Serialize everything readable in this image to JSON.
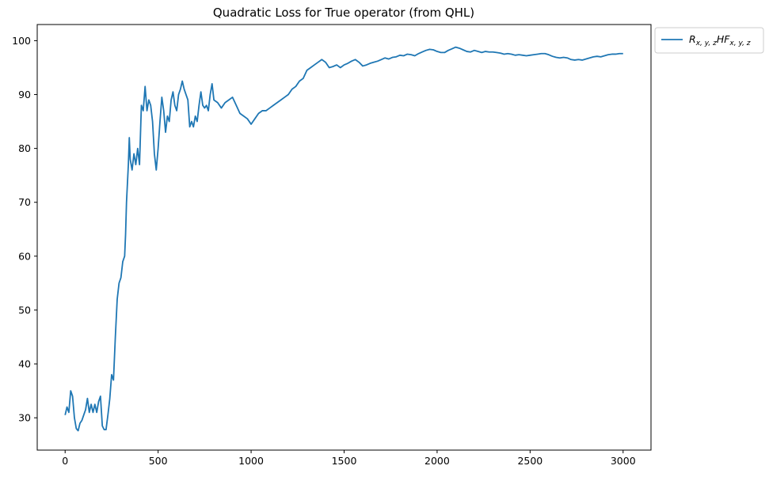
{
  "chart_data": {
    "type": "line",
    "title": "Quadratic Loss for True operator (from QHL)",
    "xlabel": "",
    "ylabel": "",
    "xlim": [
      -150,
      3150
    ],
    "ylim": [
      24,
      103
    ],
    "xticks": [
      0,
      500,
      1000,
      1500,
      2000,
      2500,
      3000
    ],
    "yticks": [
      30,
      40,
      50,
      60,
      70,
      80,
      90,
      100
    ],
    "legend_position": "outside-top-right",
    "grid": false,
    "series": [
      {
        "name": "R_{x,y,z}HF_{x,y,z}",
        "color": "#1f77b4",
        "points": [
          [
            0,
            30.5
          ],
          [
            10,
            32.0
          ],
          [
            20,
            31.0
          ],
          [
            30,
            35.0
          ],
          [
            40,
            34.0
          ],
          [
            50,
            30.0
          ],
          [
            60,
            28.0
          ],
          [
            70,
            27.6
          ],
          [
            80,
            29.0
          ],
          [
            90,
            29.5
          ],
          [
            100,
            30.5
          ],
          [
            110,
            31.5
          ],
          [
            120,
            33.6
          ],
          [
            130,
            31.0
          ],
          [
            140,
            32.5
          ],
          [
            150,
            31.0
          ],
          [
            160,
            32.5
          ],
          [
            170,
            31.0
          ],
          [
            180,
            33.0
          ],
          [
            190,
            34.0
          ],
          [
            200,
            28.5
          ],
          [
            210,
            27.8
          ],
          [
            220,
            27.8
          ],
          [
            230,
            30.5
          ],
          [
            240,
            33.5
          ],
          [
            250,
            38.0
          ],
          [
            260,
            37.0
          ],
          [
            270,
            45.0
          ],
          [
            280,
            52.0
          ],
          [
            290,
            55.0
          ],
          [
            300,
            56.0
          ],
          [
            310,
            59.0
          ],
          [
            320,
            60.0
          ],
          [
            325,
            64.0
          ],
          [
            330,
            70.0
          ],
          [
            340,
            77.0
          ],
          [
            345,
            82.0
          ],
          [
            350,
            78.0
          ],
          [
            360,
            76.0
          ],
          [
            370,
            79.0
          ],
          [
            380,
            77.0
          ],
          [
            390,
            80.0
          ],
          [
            400,
            77.0
          ],
          [
            410,
            88.0
          ],
          [
            420,
            87.0
          ],
          [
            430,
            91.5
          ],
          [
            440,
            87.0
          ],
          [
            450,
            89.0
          ],
          [
            460,
            88.0
          ],
          [
            470,
            85.0
          ],
          [
            480,
            79.0
          ],
          [
            490,
            76.0
          ],
          [
            500,
            80.0
          ],
          [
            510,
            85.0
          ],
          [
            520,
            89.5
          ],
          [
            530,
            87.0
          ],
          [
            540,
            83.0
          ],
          [
            550,
            86.0
          ],
          [
            560,
            85.0
          ],
          [
            570,
            89.0
          ],
          [
            580,
            90.5
          ],
          [
            590,
            88.0
          ],
          [
            600,
            87.0
          ],
          [
            610,
            90.0
          ],
          [
            620,
            91.0
          ],
          [
            630,
            92.5
          ],
          [
            640,
            91.0
          ],
          [
            650,
            90.0
          ],
          [
            660,
            89.0
          ],
          [
            670,
            84.0
          ],
          [
            680,
            85.0
          ],
          [
            690,
            84.0
          ],
          [
            700,
            86.0
          ],
          [
            710,
            85.0
          ],
          [
            720,
            88.0
          ],
          [
            730,
            90.5
          ],
          [
            740,
            88.0
          ],
          [
            750,
            87.5
          ],
          [
            760,
            88.0
          ],
          [
            770,
            87.0
          ],
          [
            780,
            90.0
          ],
          [
            790,
            92.0
          ],
          [
            800,
            89.0
          ],
          [
            820,
            88.5
          ],
          [
            840,
            87.5
          ],
          [
            860,
            88.5
          ],
          [
            880,
            89.0
          ],
          [
            900,
            89.5
          ],
          [
            920,
            88.0
          ],
          [
            940,
            86.5
          ],
          [
            960,
            86.0
          ],
          [
            980,
            85.5
          ],
          [
            1000,
            84.5
          ],
          [
            1020,
            85.5
          ],
          [
            1040,
            86.5
          ],
          [
            1060,
            87.0
          ],
          [
            1080,
            87.0
          ],
          [
            1100,
            87.5
          ],
          [
            1120,
            88.0
          ],
          [
            1140,
            88.5
          ],
          [
            1160,
            89.0
          ],
          [
            1180,
            89.5
          ],
          [
            1200,
            90.0
          ],
          [
            1220,
            91.0
          ],
          [
            1240,
            91.5
          ],
          [
            1260,
            92.5
          ],
          [
            1280,
            93.0
          ],
          [
            1300,
            94.5
          ],
          [
            1320,
            95.0
          ],
          [
            1340,
            95.5
          ],
          [
            1360,
            96.0
          ],
          [
            1380,
            96.5
          ],
          [
            1400,
            96.0
          ],
          [
            1420,
            95.0
          ],
          [
            1440,
            95.2
          ],
          [
            1460,
            95.5
          ],
          [
            1480,
            95.0
          ],
          [
            1500,
            95.5
          ],
          [
            1520,
            95.8
          ],
          [
            1540,
            96.2
          ],
          [
            1560,
            96.5
          ],
          [
            1580,
            96.0
          ],
          [
            1600,
            95.3
          ],
          [
            1620,
            95.5
          ],
          [
            1640,
            95.8
          ],
          [
            1660,
            96.0
          ],
          [
            1680,
            96.2
          ],
          [
            1700,
            96.5
          ],
          [
            1720,
            96.8
          ],
          [
            1740,
            96.6
          ],
          [
            1760,
            96.9
          ],
          [
            1780,
            97.0
          ],
          [
            1800,
            97.3
          ],
          [
            1820,
            97.2
          ],
          [
            1840,
            97.5
          ],
          [
            1860,
            97.4
          ],
          [
            1880,
            97.2
          ],
          [
            1900,
            97.6
          ],
          [
            1920,
            97.9
          ],
          [
            1940,
            98.2
          ],
          [
            1960,
            98.4
          ],
          [
            1980,
            98.3
          ],
          [
            2000,
            98.0
          ],
          [
            2020,
            97.8
          ],
          [
            2040,
            97.8
          ],
          [
            2060,
            98.2
          ],
          [
            2080,
            98.5
          ],
          [
            2100,
            98.8
          ],
          [
            2120,
            98.6
          ],
          [
            2140,
            98.3
          ],
          [
            2160,
            98.0
          ],
          [
            2180,
            97.9
          ],
          [
            2200,
            98.2
          ],
          [
            2220,
            98.0
          ],
          [
            2240,
            97.8
          ],
          [
            2260,
            98.0
          ],
          [
            2280,
            97.9
          ],
          [
            2300,
            97.9
          ],
          [
            2320,
            97.8
          ],
          [
            2340,
            97.7
          ],
          [
            2360,
            97.5
          ],
          [
            2380,
            97.6
          ],
          [
            2400,
            97.5
          ],
          [
            2420,
            97.3
          ],
          [
            2440,
            97.4
          ],
          [
            2460,
            97.3
          ],
          [
            2480,
            97.2
          ],
          [
            2500,
            97.3
          ],
          [
            2520,
            97.4
          ],
          [
            2540,
            97.5
          ],
          [
            2560,
            97.6
          ],
          [
            2580,
            97.6
          ],
          [
            2600,
            97.4
          ],
          [
            2620,
            97.1
          ],
          [
            2640,
            96.9
          ],
          [
            2660,
            96.8
          ],
          [
            2680,
            96.9
          ],
          [
            2700,
            96.8
          ],
          [
            2720,
            96.5
          ],
          [
            2740,
            96.4
          ],
          [
            2760,
            96.5
          ],
          [
            2780,
            96.4
          ],
          [
            2800,
            96.6
          ],
          [
            2820,
            96.8
          ],
          [
            2840,
            97.0
          ],
          [
            2860,
            97.1
          ],
          [
            2880,
            97.0
          ],
          [
            2900,
            97.2
          ],
          [
            2920,
            97.4
          ],
          [
            2940,
            97.5
          ],
          [
            2960,
            97.5
          ],
          [
            2980,
            97.6
          ],
          [
            3000,
            97.6
          ]
        ]
      }
    ]
  }
}
